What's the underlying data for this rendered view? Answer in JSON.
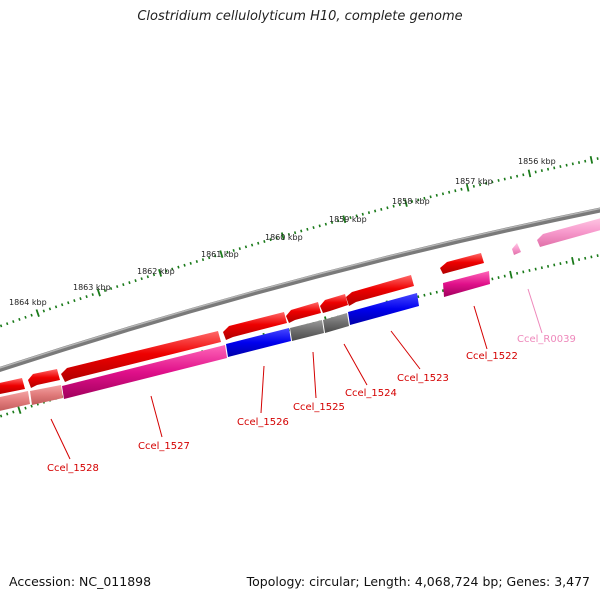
{
  "title": "Clostridium cellulolyticum H10, complete genome",
  "accession": "Accession: NC_011898",
  "summary": "Topology: circular; Length: 4,068,724 bp; Genes: 3,477",
  "colors": {
    "tick": "#1a7a1a",
    "backbone": "#7a7a7a",
    "label_red": "#d40000",
    "label_pink": "#ee88bb"
  },
  "scale_labels": [
    {
      "text": "1856 kbp"
    },
    {
      "text": "1857 kbp"
    },
    {
      "text": "1858 kbp"
    },
    {
      "text": "1859 kbp"
    },
    {
      "text": "1860 kbp"
    },
    {
      "text": "1861 kbp"
    },
    {
      "text": "1862 kbp"
    },
    {
      "text": "1863 kbp"
    },
    {
      "text": "1864 kbp"
    }
  ],
  "gene_labels": [
    {
      "name": "Ccel_1522",
      "color": "#d40000"
    },
    {
      "name": "Ccel_R0039",
      "color": "#ee88bb"
    },
    {
      "name": "Ccel_1523",
      "color": "#d40000"
    },
    {
      "name": "Ccel_1524",
      "color": "#d40000"
    },
    {
      "name": "Ccel_1525",
      "color": "#d40000"
    },
    {
      "name": "Ccel_1526",
      "color": "#d40000"
    },
    {
      "name": "Ccel_1527",
      "color": "#d40000"
    },
    {
      "name": "Ccel_1528",
      "color": "#d40000"
    }
  ]
}
